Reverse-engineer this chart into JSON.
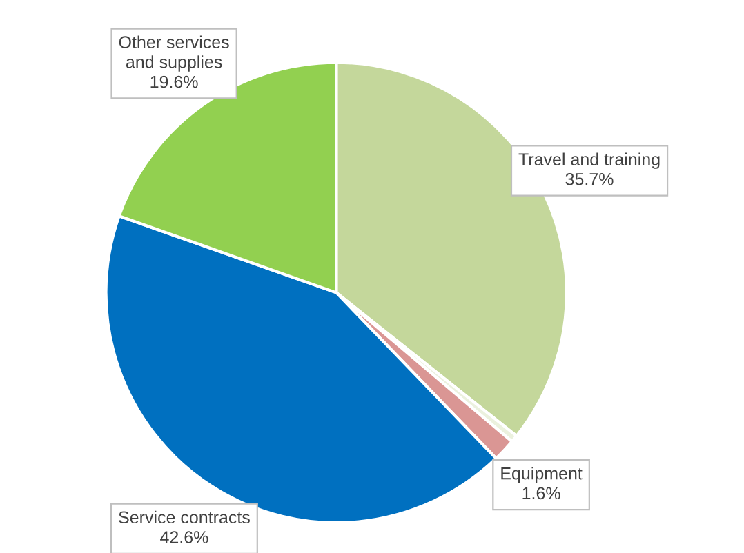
{
  "chart_data": {
    "type": "pie",
    "categories": [
      "Travel and training",
      null,
      "Equipment",
      "Service contracts",
      "Other services and supplies"
    ],
    "values": [
      35.7,
      0.5,
      1.6,
      42.6,
      19.6
    ],
    "value_labels": [
      "35.7%",
      null,
      "1.6%",
      "42.6%",
      "19.6%"
    ],
    "colors": [
      "#c4d79b",
      "#ebf1de",
      "#da9694",
      "#0070c0",
      "#92d050"
    ]
  }
}
